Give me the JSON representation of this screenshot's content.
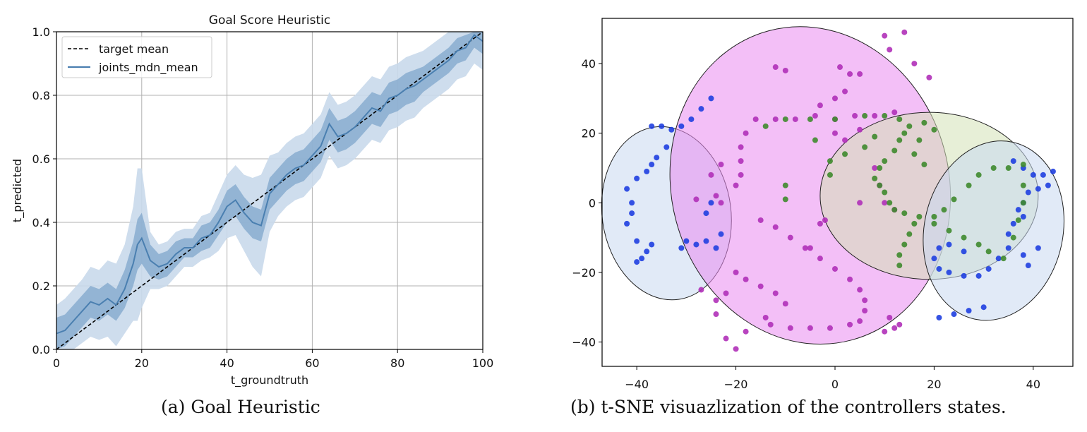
{
  "captions": {
    "a": "(a)  Goal Heuristic",
    "b": "(b)  t-SNE visuazlization of the controllers states."
  },
  "colors": {
    "mean_line": "#4a7fb0",
    "band_outer": "#c9d9eb",
    "band_inner": "#7fa5cb",
    "target_line": "#000000",
    "grid": "#b0b0b0",
    "cluster_blue_fill": "#c8d8f0",
    "cluster_magenta_fill": "#e98bf0",
    "cluster_green_fill": "#d3e2b6",
    "points_blue": "#1f3fe0",
    "points_magenta": "#b030b8",
    "points_green": "#3f8a2e"
  },
  "chart_data": [
    {
      "type": "line",
      "title": "Goal Score Heuristic",
      "xlabel": "t_groundtruth",
      "ylabel": "t_predicted",
      "xlim": [
        0,
        100
      ],
      "ylim": [
        0.0,
        1.0
      ],
      "xticks": [
        "0",
        "20",
        "40",
        "60",
        "80",
        "100"
      ],
      "yticks": [
        "0.0",
        "0.2",
        "0.4",
        "0.6",
        "0.8",
        "1.0"
      ],
      "grid": true,
      "legend_position": "top-left",
      "series": [
        {
          "name": "target mean",
          "style": "dashed",
          "x": [
            0,
            100
          ],
          "y": [
            0.0,
            1.0
          ]
        },
        {
          "name": "joints_mdn_mean",
          "style": "solid",
          "x": [
            0,
            2,
            4,
            6,
            8,
            10,
            12,
            14,
            16,
            18,
            19,
            20,
            22,
            24,
            26,
            28,
            30,
            32,
            34,
            36,
            38,
            40,
            42,
            44,
            46,
            48,
            50,
            52,
            54,
            56,
            58,
            60,
            62,
            64,
            66,
            68,
            70,
            72,
            74,
            76,
            78,
            80,
            82,
            84,
            86,
            88,
            90,
            92,
            94,
            96,
            98,
            100
          ],
          "y": [
            0.05,
            0.06,
            0.09,
            0.12,
            0.15,
            0.14,
            0.16,
            0.14,
            0.19,
            0.27,
            0.33,
            0.35,
            0.28,
            0.26,
            0.27,
            0.3,
            0.32,
            0.32,
            0.35,
            0.36,
            0.4,
            0.45,
            0.47,
            0.43,
            0.4,
            0.39,
            0.49,
            0.52,
            0.55,
            0.57,
            0.58,
            0.61,
            0.64,
            0.71,
            0.67,
            0.68,
            0.7,
            0.73,
            0.76,
            0.75,
            0.79,
            0.8,
            0.82,
            0.83,
            0.85,
            0.87,
            0.89,
            0.91,
            0.94,
            0.95,
            0.99,
            0.97
          ],
          "band_inner": [
            0.05,
            0.05,
            0.05,
            0.05,
            0.05,
            0.05,
            0.05,
            0.05,
            0.06,
            0.07,
            0.08,
            0.08,
            0.05,
            0.04,
            0.04,
            0.04,
            0.03,
            0.03,
            0.04,
            0.04,
            0.04,
            0.05,
            0.05,
            0.05,
            0.05,
            0.05,
            0.05,
            0.05,
            0.05,
            0.05,
            0.05,
            0.05,
            0.05,
            0.05,
            0.05,
            0.05,
            0.05,
            0.05,
            0.05,
            0.05,
            0.05,
            0.05,
            0.05,
            0.05,
            0.04,
            0.04,
            0.04,
            0.04,
            0.04,
            0.04,
            0.04,
            0.04
          ],
          "band_outer": [
            0.09,
            0.1,
            0.1,
            0.1,
            0.11,
            0.11,
            0.12,
            0.13,
            0.14,
            0.18,
            0.24,
            0.22,
            0.09,
            0.07,
            0.07,
            0.07,
            0.06,
            0.06,
            0.07,
            0.07,
            0.09,
            0.1,
            0.11,
            0.12,
            0.14,
            0.16,
            0.12,
            0.1,
            0.1,
            0.1,
            0.1,
            0.1,
            0.1,
            0.1,
            0.1,
            0.1,
            0.1,
            0.1,
            0.1,
            0.1,
            0.1,
            0.1,
            0.1,
            0.1,
            0.09,
            0.09,
            0.09,
            0.09,
            0.09,
            0.09,
            0.09,
            0.09
          ]
        }
      ]
    },
    {
      "type": "scatter",
      "title": "",
      "xlabel": "",
      "ylabel": "",
      "xlim": [
        -47,
        48
      ],
      "ylim": [
        -47,
        53
      ],
      "xticks": [
        "−40",
        "−20",
        "0",
        "20",
        "40"
      ],
      "yticks": [
        "−40",
        "−20",
        "0",
        "20",
        "40"
      ],
      "grid": false,
      "regions": [
        {
          "name": "blue-left",
          "cx": -34,
          "cy": -3,
          "rx": 13,
          "ry": 25,
          "rot": -8,
          "color": "blue"
        },
        {
          "name": "magenta",
          "cx": -5,
          "cy": 5,
          "rx": 28,
          "ry": 46,
          "rot": -15,
          "color": "magenta"
        },
        {
          "name": "green",
          "cx": 19,
          "cy": 2,
          "rx": 22,
          "ry": 24,
          "rot": 0,
          "color": "green"
        },
        {
          "name": "blue-right",
          "cx": 32,
          "cy": -8,
          "rx": 14,
          "ry": 26,
          "rot": 12,
          "color": "blue"
        }
      ],
      "series": [
        {
          "name": "blue",
          "color": "blue",
          "points": [
            [
              -25,
              30
            ],
            [
              -27,
              27
            ],
            [
              -29,
              24
            ],
            [
              -31,
              22
            ],
            [
              -33,
              21
            ],
            [
              -35,
              22
            ],
            [
              -37,
              22
            ],
            [
              -34,
              16
            ],
            [
              -36,
              13
            ],
            [
              -37,
              11
            ],
            [
              -38,
              9
            ],
            [
              -40,
              7
            ],
            [
              -42,
              4
            ],
            [
              -41,
              0
            ],
            [
              -41,
              -3
            ],
            [
              -42,
              -6
            ],
            [
              -40,
              -11
            ],
            [
              -37,
              -12
            ],
            [
              -38,
              -14
            ],
            [
              -39,
              -16
            ],
            [
              -40,
              -17
            ],
            [
              -31,
              -13
            ],
            [
              -30,
              -11
            ],
            [
              -28,
              -12
            ],
            [
              -26,
              -11
            ],
            [
              -24,
              -13
            ],
            [
              -23,
              -9
            ],
            [
              -26,
              -3
            ],
            [
              -25,
              0
            ],
            [
              36,
              12
            ],
            [
              38,
              10
            ],
            [
              40,
              8
            ],
            [
              42,
              8
            ],
            [
              44,
              9
            ],
            [
              43,
              5
            ],
            [
              41,
              4
            ],
            [
              39,
              3
            ],
            [
              38,
              0
            ],
            [
              37,
              -2
            ],
            [
              38,
              -4
            ],
            [
              36,
              -6
            ],
            [
              35,
              -9
            ],
            [
              35,
              -13
            ],
            [
              33,
              -16
            ],
            [
              31,
              -19
            ],
            [
              29,
              -21
            ],
            [
              26,
              -21
            ],
            [
              23,
              -20
            ],
            [
              21,
              -19
            ],
            [
              20,
              -16
            ],
            [
              21,
              -13
            ],
            [
              23,
              -12
            ],
            [
              26,
              -14
            ],
            [
              38,
              -15
            ],
            [
              39,
              -18
            ],
            [
              41,
              -13
            ],
            [
              24,
              -32
            ],
            [
              27,
              -31
            ],
            [
              30,
              -30
            ],
            [
              21,
              -33
            ]
          ]
        },
        {
          "name": "magenta",
          "color": "magenta",
          "points": [
            [
              -16,
              24
            ],
            [
              -12,
              24
            ],
            [
              -8,
              24
            ],
            [
              -4,
              25
            ],
            [
              0,
              24
            ],
            [
              4,
              25
            ],
            [
              8,
              25
            ],
            [
              12,
              26
            ],
            [
              -18,
              20
            ],
            [
              -19,
              16
            ],
            [
              -19,
              12
            ],
            [
              -19,
              8
            ],
            [
              -20,
              5
            ],
            [
              -24,
              2
            ],
            [
              -28,
              1
            ],
            [
              -23,
              0
            ],
            [
              -15,
              -5
            ],
            [
              -12,
              -7
            ],
            [
              -9,
              -10
            ],
            [
              -6,
              -13
            ],
            [
              -3,
              -16
            ],
            [
              0,
              -19
            ],
            [
              3,
              -22
            ],
            [
              5,
              -25
            ],
            [
              6,
              -28
            ],
            [
              6,
              -31
            ],
            [
              5,
              -34
            ],
            [
              3,
              -35
            ],
            [
              -1,
              -36
            ],
            [
              -5,
              -36
            ],
            [
              -9,
              -36
            ],
            [
              -13,
              -35
            ],
            [
              -18,
              -37
            ],
            [
              -22,
              -39
            ],
            [
              -20,
              -42
            ],
            [
              -20,
              -20
            ],
            [
              -18,
              -22
            ],
            [
              -15,
              -24
            ],
            [
              -12,
              -26
            ],
            [
              -10,
              -29
            ],
            [
              -14,
              -33
            ],
            [
              -24,
              -28
            ],
            [
              -27,
              -25
            ],
            [
              -22,
              -26
            ],
            [
              -24,
              -32
            ],
            [
              -12,
              39
            ],
            [
              -10,
              38
            ],
            [
              1,
              39
            ],
            [
              3,
              37
            ],
            [
              5,
              37
            ],
            [
              10,
              48
            ],
            [
              11,
              44
            ],
            [
              14,
              49
            ],
            [
              16,
              40
            ],
            [
              19,
              36
            ],
            [
              -3,
              28
            ],
            [
              0,
              30
            ],
            [
              2,
              32
            ],
            [
              0,
              20
            ],
            [
              2,
              18
            ],
            [
              5,
              21
            ],
            [
              8,
              10
            ],
            [
              9,
              5
            ],
            [
              10,
              0
            ],
            [
              12,
              -2
            ],
            [
              5,
              0
            ],
            [
              -2,
              -5
            ],
            [
              -25,
              8
            ],
            [
              -23,
              11
            ],
            [
              11,
              -33
            ],
            [
              13,
              -35
            ],
            [
              12,
              -36
            ],
            [
              10,
              -37
            ],
            [
              -5,
              -13
            ],
            [
              -3,
              -6
            ]
          ]
        },
        {
          "name": "green",
          "color": "green",
          "points": [
            [
              -14,
              22
            ],
            [
              -10,
              24
            ],
            [
              -5,
              24
            ],
            [
              0,
              24
            ],
            [
              6,
              25
            ],
            [
              10,
              25
            ],
            [
              13,
              24
            ],
            [
              15,
              22
            ],
            [
              18,
              23
            ],
            [
              20,
              21
            ],
            [
              14,
              20
            ],
            [
              13,
              18
            ],
            [
              12,
              15
            ],
            [
              10,
              12
            ],
            [
              9,
              10
            ],
            [
              8,
              7
            ],
            [
              9,
              5
            ],
            [
              10,
              3
            ],
            [
              11,
              0
            ],
            [
              12,
              -2
            ],
            [
              14,
              -3
            ],
            [
              17,
              -4
            ],
            [
              20,
              -4
            ],
            [
              22,
              -2
            ],
            [
              24,
              1
            ],
            [
              27,
              5
            ],
            [
              29,
              8
            ],
            [
              32,
              10
            ],
            [
              35,
              10
            ],
            [
              38,
              11
            ],
            [
              8,
              19
            ],
            [
              6,
              16
            ],
            [
              2,
              14
            ],
            [
              -1,
              12
            ],
            [
              -1,
              8
            ],
            [
              16,
              -6
            ],
            [
              15,
              -9
            ],
            [
              14,
              -12
            ],
            [
              13,
              -15
            ],
            [
              13,
              -18
            ],
            [
              20,
              -6
            ],
            [
              23,
              -8
            ],
            [
              26,
              -10
            ],
            [
              29,
              -12
            ],
            [
              31,
              -14
            ],
            [
              34,
              -16
            ],
            [
              36,
              -10
            ],
            [
              37,
              -5
            ],
            [
              38,
              0
            ],
            [
              38,
              5
            ],
            [
              16,
              14
            ],
            [
              17,
              18
            ],
            [
              18,
              11
            ],
            [
              -10,
              5
            ],
            [
              -10,
              1
            ],
            [
              -4,
              18
            ]
          ]
        }
      ]
    }
  ]
}
